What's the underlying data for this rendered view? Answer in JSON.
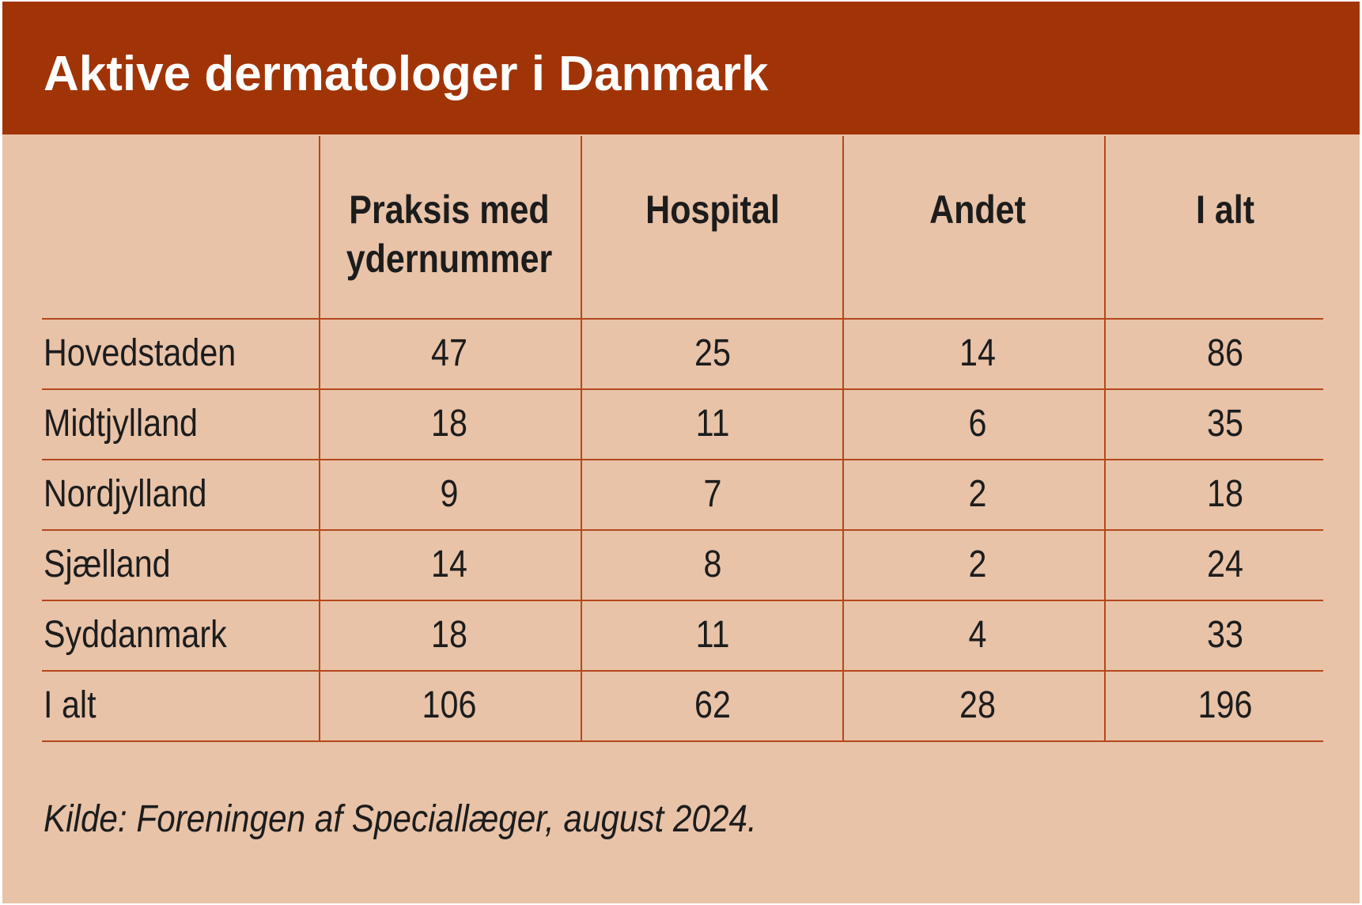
{
  "title": "Aktive dermatologer i Danmark",
  "source": "Kilde: Foreningen af Speciallæger, august 2024.",
  "colors": {
    "header_bg": "#a13407",
    "body_bg": "#e8c3a8",
    "rule": "#b5471c",
    "title_text": "#ffffff",
    "body_text": "#1c1c1c"
  },
  "chart_data": {
    "type": "table",
    "title": "Aktive dermatologer i Danmark",
    "columns": [
      "Praksis med ydernummer",
      "Hospital",
      "Andet",
      "I alt"
    ],
    "rows": [
      {
        "label": "Hovedstaden",
        "values": [
          47,
          25,
          14,
          86
        ]
      },
      {
        "label": "Midtjylland",
        "values": [
          18,
          11,
          6,
          35
        ]
      },
      {
        "label": "Nordjylland",
        "values": [
          9,
          7,
          2,
          18
        ]
      },
      {
        "label": "Sjælland",
        "values": [
          14,
          8,
          2,
          24
        ]
      },
      {
        "label": "Syddanmark",
        "values": [
          18,
          11,
          4,
          33
        ]
      },
      {
        "label": "I alt",
        "values": [
          106,
          62,
          28,
          196
        ]
      }
    ]
  }
}
